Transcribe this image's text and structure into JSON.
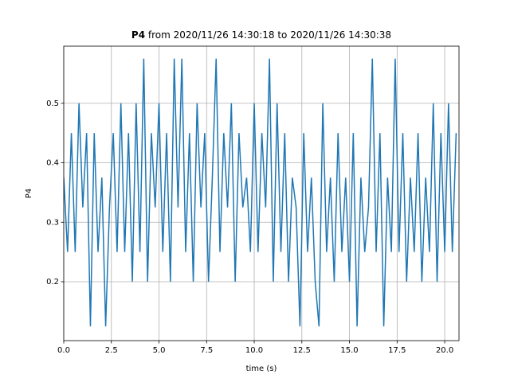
{
  "chart_data": {
    "type": "line",
    "title_name": "P4",
    "title_rest": "from 2020/11/26 14:30:18 to 2020/11/26 14:30:38",
    "xlabel": "time (s)",
    "ylabel": "P4",
    "x": [
      0.0,
      0.2,
      0.4,
      0.6,
      0.8,
      1.0,
      1.2,
      1.4,
      1.6,
      1.8,
      2.0,
      2.2,
      2.4,
      2.6,
      2.8,
      3.0,
      3.2,
      3.4,
      3.6,
      3.8,
      4.0,
      4.2,
      4.4,
      4.6,
      4.8,
      5.0,
      5.2,
      5.4,
      5.6,
      5.8,
      6.0,
      6.2,
      6.4,
      6.6,
      6.8,
      7.0,
      7.2,
      7.4,
      7.6,
      7.8,
      8.0,
      8.2,
      8.4,
      8.6,
      8.8,
      9.0,
      9.2,
      9.4,
      9.6,
      9.8,
      10.0,
      10.2,
      10.4,
      10.6,
      10.8,
      11.0,
      11.2,
      11.4,
      11.6,
      11.8,
      12.0,
      12.2,
      12.4,
      12.6,
      12.8,
      13.0,
      13.2,
      13.4,
      13.6,
      13.8,
      14.0,
      14.2,
      14.4,
      14.6,
      14.8,
      15.0,
      15.2,
      15.4,
      15.6,
      15.8,
      16.0,
      16.2,
      16.4,
      16.6,
      16.8,
      17.0,
      17.2,
      17.4,
      17.6,
      17.8,
      18.0,
      18.2,
      18.4,
      18.6,
      18.8,
      19.0,
      19.2,
      19.4,
      19.6,
      19.8,
      20.0,
      20.2,
      20.4,
      20.6
    ],
    "series": [
      {
        "color": "#1f77b4",
        "values": [
          0.375,
          0.25,
          0.45,
          0.25,
          0.5,
          0.325,
          0.45,
          0.125,
          0.45,
          0.25,
          0.375,
          0.125,
          0.325,
          0.45,
          0.25,
          0.5,
          0.25,
          0.45,
          0.2,
          0.5,
          0.25,
          0.575,
          0.2,
          0.45,
          0.325,
          0.5,
          0.25,
          0.45,
          0.2,
          0.575,
          0.325,
          0.575,
          0.25,
          0.45,
          0.2,
          0.5,
          0.325,
          0.45,
          0.2,
          0.375,
          0.575,
          0.25,
          0.45,
          0.325,
          0.5,
          0.2,
          0.45,
          0.325,
          0.375,
          0.25,
          0.5,
          0.25,
          0.45,
          0.325,
          0.575,
          0.2,
          0.5,
          0.25,
          0.45,
          0.2,
          0.375,
          0.325,
          0.125,
          0.45,
          0.25,
          0.375,
          0.2,
          0.125,
          0.5,
          0.25,
          0.375,
          0.2,
          0.45,
          0.25,
          0.375,
          0.2,
          0.45,
          0.125,
          0.375,
          0.25,
          0.325,
          0.575,
          0.25,
          0.45,
          0.125,
          0.375,
          0.25,
          0.575,
          0.25,
          0.45,
          0.2,
          0.375,
          0.25,
          0.45,
          0.2,
          0.375,
          0.25,
          0.5,
          0.2,
          0.45,
          0.25,
          0.5,
          0.25,
          0.45
        ]
      }
    ],
    "xlim": [
      0,
      20.75
    ],
    "ylim": [
      0.101,
      0.596
    ],
    "xticks": [
      {
        "value": 0,
        "label": "0.0"
      },
      {
        "value": 2.5,
        "label": "2.5"
      },
      {
        "value": 5,
        "label": "5.0"
      },
      {
        "value": 7.5,
        "label": "7.5"
      },
      {
        "value": 10,
        "label": "10.0"
      },
      {
        "value": 12.5,
        "label": "12.5"
      },
      {
        "value": 15,
        "label": "15.0"
      },
      {
        "value": 17.5,
        "label": "17.5"
      },
      {
        "value": 20,
        "label": "20.0"
      }
    ],
    "yticks": [
      0.2,
      0.3,
      0.4,
      0.5
    ],
    "grid": true
  }
}
